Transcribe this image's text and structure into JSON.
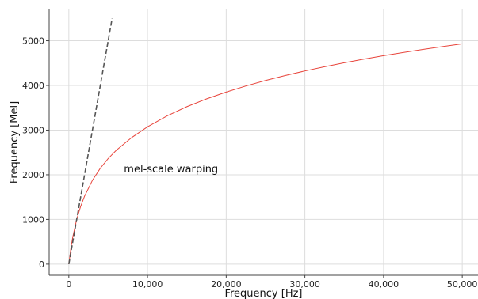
{
  "chart_data": {
    "type": "line",
    "title": "",
    "xlabel": "Frequency [Hz]",
    "ylabel": "Frequency [Mel]",
    "xlim": [
      -2500,
      52000
    ],
    "ylim": [
      -250,
      5700
    ],
    "grid": true,
    "x_ticks": [
      0,
      10000,
      20000,
      30000,
      40000,
      50000
    ],
    "x_tick_labels": [
      "0",
      "10,000",
      "20,000",
      "30,000",
      "40,000",
      "50,000"
    ],
    "y_ticks": [
      0,
      1000,
      2000,
      3000,
      4000,
      5000
    ],
    "y_tick_labels": [
      "0",
      "1000",
      "2000",
      "3000",
      "4000",
      "5000"
    ],
    "series": [
      {
        "style": "solid",
        "color": "#e8453c",
        "x": [
          0,
          250,
          500,
          1000,
          1500,
          2000,
          3000,
          4000,
          5000,
          6000,
          8000,
          10000,
          12500,
          15000,
          17500,
          20000,
          22500,
          25000,
          27500,
          30000,
          32500,
          35000,
          37500,
          40000,
          42500,
          45000,
          47500,
          50000
        ],
        "y": [
          0,
          344,
          607,
          1000,
          1290,
          1521,
          1876,
          2146,
          2363,
          2544,
          2835,
          3073,
          3319,
          3524,
          3699,
          3852,
          3988,
          4111,
          4222,
          4324,
          4419,
          4507,
          4589,
          4666,
          4738,
          4806,
          4870,
          4931
        ]
      },
      {
        "style": "dashed",
        "color": "#555555",
        "x": [
          0,
          5500
        ],
        "y": [
          0,
          5500
        ]
      }
    ],
    "annotations": [
      {
        "text": "mel-scale warping",
        "x": 7000,
        "y": 2050
      }
    ]
  }
}
